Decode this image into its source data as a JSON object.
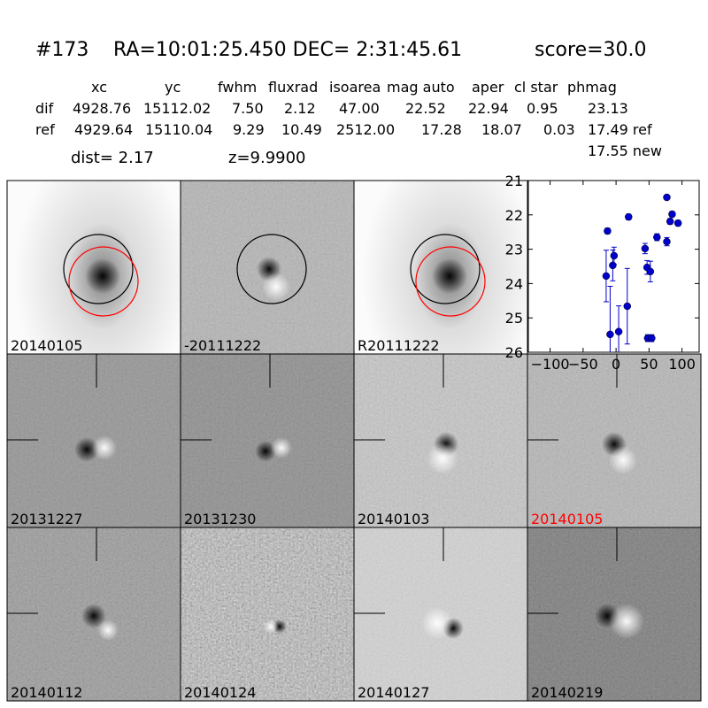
{
  "header": {
    "id": "#173",
    "coords": "RA=10:01:25.450 DEC= 2:31:45.61",
    "score": "score=30.0"
  },
  "table": {
    "columns": [
      "xc",
      "yc",
      "fwhm",
      "fluxrad",
      "isoarea",
      "mag auto",
      "aper",
      "cl star",
      "phmag"
    ],
    "rows": [
      [
        "dif",
        "4928.76",
        "15112.02",
        "7.50",
        "2.12",
        "47.00",
        "22.52",
        "22.94",
        "0.95",
        "23.13"
      ],
      [
        "ref",
        "4929.64",
        "15110.04",
        "9.29",
        "10.49",
        "2512.00",
        "17.28",
        "18.07",
        "0.03",
        "17.49 ref"
      ]
    ],
    "extra": "17.55 new"
  },
  "dist": "dist=  2.17",
  "z": "z=9.9900",
  "panels": [
    {
      "label": "20140105"
    },
    {
      "label": "-20111222"
    },
    {
      "label": "R20111222"
    },
    {
      "label": "20131227"
    },
    {
      "label": "20131230"
    },
    {
      "label": "20140103"
    },
    {
      "label": "20140105",
      "color": "#ff0000"
    },
    {
      "label": "20140112"
    },
    {
      "label": "20140124"
    },
    {
      "label": "20140127"
    },
    {
      "label": "20140219"
    }
  ],
  "lightcurve": {
    "type": "scatter",
    "color": "#0000cc",
    "x": [
      -13,
      -5,
      -3,
      -15,
      -9,
      4,
      19,
      17,
      44,
      47,
      52,
      48,
      54,
      62,
      77,
      77,
      82,
      85,
      94
    ],
    "y": [
      22.47,
      23.47,
      23.19,
      23.78,
      25.48,
      25.4,
      22.06,
      24.66,
      22.98,
      23.53,
      23.65,
      25.59,
      25.59,
      22.65,
      21.49,
      22.78,
      22.19,
      21.98,
      22.24
    ],
    "err": [
      0.08,
      0.45,
      0.25,
      0.75,
      1.4,
      0.75,
      0.08,
      1.1,
      0.15,
      0.2,
      0.3,
      0.1,
      0.1,
      0.1,
      0.05,
      0.12,
      0.08,
      0.08,
      0.08
    ],
    "xlim": [
      -133,
      126
    ],
    "ylim": [
      26,
      21
    ],
    "xticks": [
      {
        "value": -100,
        "label": "−100"
      },
      {
        "value": -50,
        "label": "−50"
      },
      0,
      50,
      100
    ],
    "yticks": [
      21,
      22,
      23,
      24,
      25,
      26
    ]
  }
}
